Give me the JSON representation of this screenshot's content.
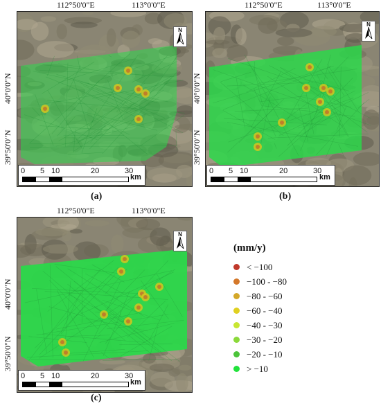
{
  "coords": {
    "lon1": "112°50'0\"E",
    "lon2": "113°0'0\"E",
    "lat1": "40°0'0\"N",
    "lat2": "39°50'0\"N"
  },
  "panels": [
    {
      "label": "(a)",
      "density": "sparse"
    },
    {
      "label": "(b)",
      "density": "medium"
    },
    {
      "label": "(c)",
      "density": "dense"
    }
  ],
  "scalebar": {
    "ticks": [
      "0",
      "5",
      "10",
      "20",
      "30"
    ],
    "unit": "km"
  },
  "north_arrow": "N",
  "legend": {
    "title": "(mm/y)",
    "items": [
      {
        "label": "< −100",
        "color": "#c0392b"
      },
      {
        "label": "−100 - −80",
        "color": "#d4782a"
      },
      {
        "label": "−80 - −60",
        "color": "#d4a82a"
      },
      {
        "label": "−60 - −40",
        "color": "#e0d020"
      },
      {
        "label": "−40 - −30",
        "color": "#c8e632"
      },
      {
        "label": "−30 - −20",
        "color": "#8bd93a"
      },
      {
        "label": "−20 - −10",
        "color": "#4cc43a"
      },
      {
        "label": "> −10",
        "color": "#22e23c"
      }
    ]
  }
}
